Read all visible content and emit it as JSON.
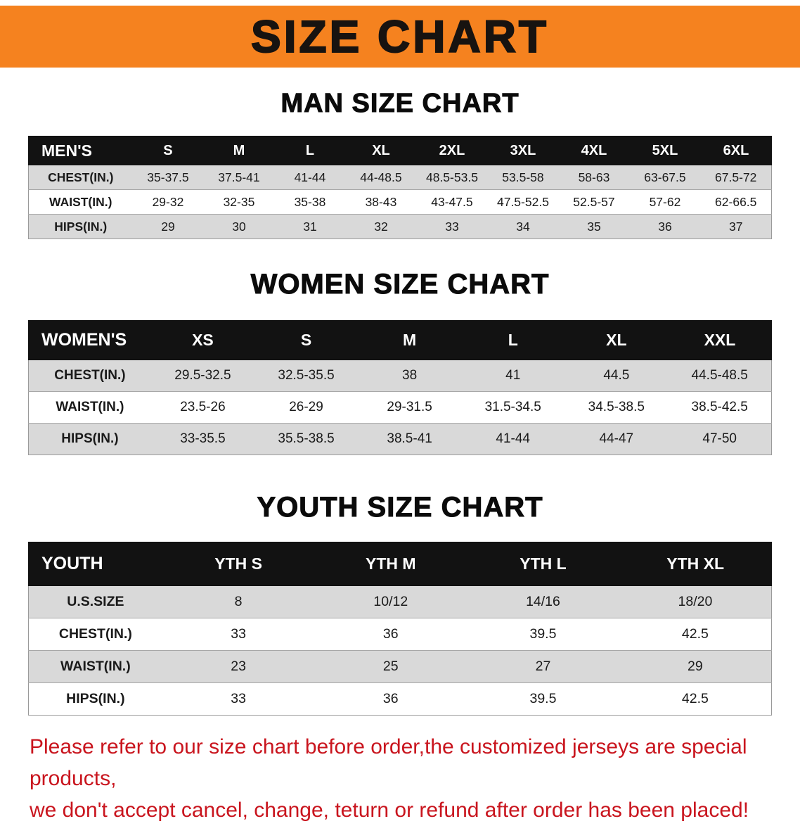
{
  "banner": {
    "title": "SIZE CHART",
    "background_color": "#f5821f",
    "text_color": "#171310"
  },
  "chart_data": [
    {
      "type": "table",
      "title": "MAN SIZE CHART",
      "columns": [
        "MEN'S",
        "S",
        "M",
        "L",
        "XL",
        "2XL",
        "3XL",
        "4XL",
        "5XL",
        "6XL"
      ],
      "rows": [
        [
          "CHEST(IN.)",
          "35-37.5",
          "37.5-41",
          "41-44",
          "44-48.5",
          "48.5-53.5",
          "53.5-58",
          "58-63",
          "63-67.5",
          "67.5-72"
        ],
        [
          "WAIST(IN.)",
          "29-32",
          "32-35",
          "35-38",
          "38-43",
          "43-47.5",
          "47.5-52.5",
          "52.5-57",
          "57-62",
          "62-66.5"
        ],
        [
          "HIPS(IN.)",
          "29",
          "30",
          "31",
          "32",
          "33",
          "34",
          "35",
          "36",
          "37"
        ]
      ]
    },
    {
      "type": "table",
      "title": "WOMEN SIZE CHART",
      "columns": [
        "WOMEN'S",
        "XS",
        "S",
        "M",
        "L",
        "XL",
        "XXL"
      ],
      "rows": [
        [
          "CHEST(IN.)",
          "29.5-32.5",
          "32.5-35.5",
          "38",
          "41",
          "44.5",
          "44.5-48.5"
        ],
        [
          "WAIST(IN.)",
          "23.5-26",
          "26-29",
          "29-31.5",
          "31.5-34.5",
          "34.5-38.5",
          "38.5-42.5"
        ],
        [
          "HIPS(IN.)",
          "33-35.5",
          "35.5-38.5",
          "38.5-41",
          "41-44",
          "44-47",
          "47-50"
        ]
      ]
    },
    {
      "type": "table",
      "title": "YOUTH SIZE CHART",
      "columns": [
        "YOUTH",
        "YTH S",
        "YTH M",
        "YTH L",
        "YTH XL"
      ],
      "rows": [
        [
          "U.S.SIZE",
          "8",
          "10/12",
          "14/16",
          "18/20"
        ],
        [
          "CHEST(IN.)",
          "33",
          "36",
          "39.5",
          "42.5"
        ],
        [
          "WAIST(IN.)",
          "23",
          "25",
          "27",
          "29"
        ],
        [
          "HIPS(IN.)",
          "33",
          "36",
          "39.5",
          "42.5"
        ]
      ]
    }
  ],
  "footer_note": {
    "line1": "Please refer to our size chart before order,the customized jerseys are special products,",
    "line2": "we don't accept cancel, change, teturn or refund after order has been placed!",
    "color": "#c9151e"
  }
}
